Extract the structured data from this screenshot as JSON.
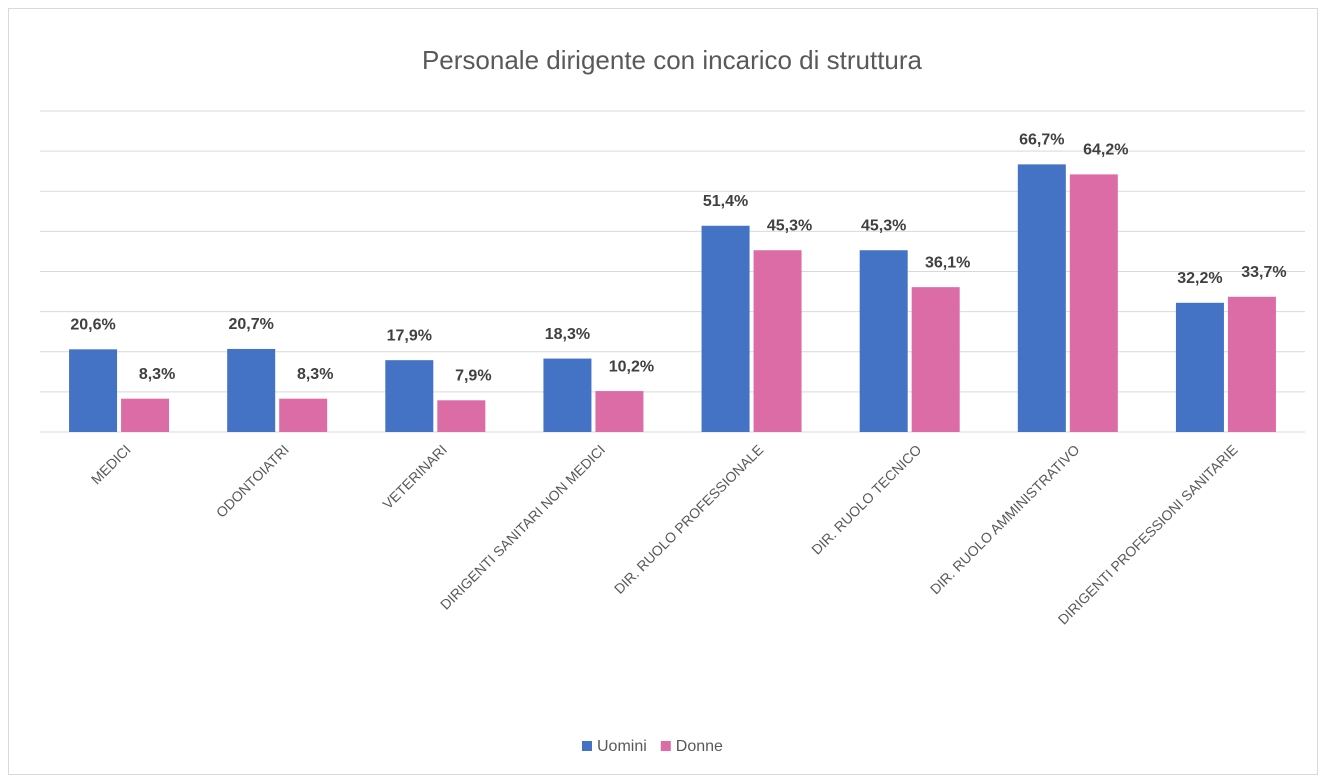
{
  "chart_data": {
    "type": "bar",
    "title": "Personale dirigente con incarico di struttura",
    "categories": [
      "MEDICI",
      "ODONTOIATRI",
      "VETERINARI",
      "DIRIGENTI SANITARI NON MEDICI",
      "DIR. RUOLO PROFESSIONALE",
      "DIR. RUOLO TECNICO",
      "DIR. RUOLO AMMINISTRATIVO",
      "DIRIGENTI PROFESSIONI SANITARIE"
    ],
    "series": [
      {
        "name": "Uomini",
        "color": "#4472c4",
        "values": [
          20.6,
          20.7,
          17.9,
          18.3,
          51.4,
          45.3,
          66.7,
          32.2
        ],
        "value_labels": [
          "20,6%",
          "20,7%",
          "17,9%",
          "18,3%",
          "51,4%",
          "45,3%",
          "66,7%",
          "32,2%"
        ]
      },
      {
        "name": "Donne",
        "color": "#dc6ca5",
        "values": [
          8.3,
          8.3,
          7.9,
          10.2,
          45.3,
          36.1,
          64.2,
          33.7
        ],
        "value_labels": [
          "8,3%",
          "8,3%",
          "7,9%",
          "10,2%",
          "45,3%",
          "36,1%",
          "64,2%",
          "33,7%"
        ]
      }
    ],
    "ylim": [
      0,
      80
    ],
    "yticks": [
      0,
      10,
      20,
      30,
      40,
      50,
      60,
      70,
      80
    ],
    "grid": true,
    "legend": "bottom"
  }
}
